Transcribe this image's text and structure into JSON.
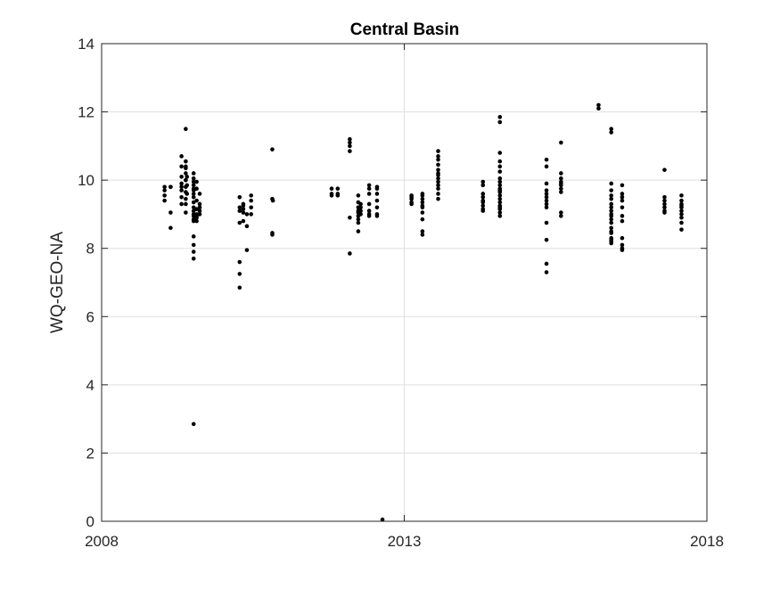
{
  "chart_data": {
    "type": "scatter",
    "title": "Central Basin",
    "xlabel": "",
    "ylabel": "WQ-GEO-NA",
    "xlim": [
      2008,
      2018
    ],
    "ylim": [
      0,
      14
    ],
    "xticks": [
      2008,
      2013,
      2018
    ],
    "xtick_labels": [
      "2008",
      "2013",
      "2018"
    ],
    "yticks": [
      0,
      2,
      4,
      6,
      8,
      10,
      12,
      14
    ],
    "ytick_labels": [
      "0",
      "2",
      "4",
      "6",
      "8",
      "10",
      "12",
      "14"
    ],
    "grid": true,
    "marker_color": "#000000",
    "axis_color": "#262626",
    "grid_color": "#dfdfdf",
    "series": [
      {
        "x": [
          2009.04,
          2009.04,
          2009.04,
          2009.04,
          2009.14,
          2009.14,
          2009.14,
          2009.14,
          2009.32,
          2009.32,
          2009.32,
          2009.32,
          2009.32,
          2009.32,
          2009.32,
          2009.32,
          2009.39,
          2009.39,
          2009.39,
          2009.39,
          2009.39,
          2009.39,
          2009.39,
          2009.39,
          2009.39,
          2009.39,
          2009.39,
          2009.39,
          2009.41,
          2009.41,
          2009.41,
          2009.52,
          2009.52,
          2009.52,
          2009.52,
          2009.52,
          2009.52,
          2009.52,
          2009.52,
          2009.52,
          2009.52,
          2009.52,
          2009.52,
          2009.52,
          2009.52,
          2009.52,
          2009.52,
          2009.52,
          2009.52,
          2009.52,
          2009.52,
          2009.57,
          2009.57,
          2009.57,
          2009.57,
          2009.57,
          2009.57,
          2009.57,
          2009.57,
          2009.62,
          2009.62,
          2009.62,
          2009.62,
          2009.62,
          2010.28,
          2010.28,
          2010.28,
          2010.28,
          2010.28,
          2010.28,
          2010.28,
          2010.34,
          2010.34,
          2010.34,
          2010.34,
          2010.34,
          2010.4,
          2010.4,
          2010.4,
          2010.47,
          2010.47,
          2010.47,
          2010.47,
          2010.82,
          2010.82,
          2010.82,
          2010.82,
          2010.83,
          2011.8,
          2011.8,
          2011.8,
          2011.9,
          2011.9,
          2011.9,
          2012.1,
          2012.1,
          2012.1,
          2012.1,
          2012.1,
          2012.1,
          2012.24,
          2012.24,
          2012.24,
          2012.24,
          2012.24,
          2012.24,
          2012.24,
          2012.24,
          2012.24,
          2012.28,
          2012.28,
          2012.28,
          2012.28,
          2012.42,
          2012.42,
          2012.42,
          2012.42,
          2012.42,
          2012.42,
          2012.42,
          2012.55,
          2012.55,
          2012.55,
          2012.55,
          2012.55,
          2012.55,
          2012.55,
          2012.64,
          2013.12,
          2013.12,
          2013.12,
          2013.12,
          2013.12,
          2013.3,
          2013.3,
          2013.3,
          2013.3,
          2013.3,
          2013.3,
          2013.3,
          2013.3,
          2013.3,
          2013.3,
          2013.56,
          2013.56,
          2013.56,
          2013.56,
          2013.56,
          2013.56,
          2013.56,
          2013.56,
          2013.56,
          2013.56,
          2013.56,
          2013.56,
          2013.56,
          2014.3,
          2014.3,
          2014.3,
          2014.3,
          2014.3,
          2014.3,
          2014.3,
          2014.3,
          2014.3,
          2014.58,
          2014.58,
          2014.58,
          2014.58,
          2014.58,
          2014.58,
          2014.58,
          2014.58,
          2014.58,
          2014.58,
          2014.58,
          2014.58,
          2014.58,
          2014.58,
          2014.58,
          2014.58,
          2014.58,
          2014.58,
          2014.58,
          2014.58,
          2015.35,
          2015.35,
          2015.35,
          2015.35,
          2015.35,
          2015.35,
          2015.35,
          2015.35,
          2015.35,
          2015.35,
          2015.35,
          2015.35,
          2015.35,
          2015.59,
          2015.59,
          2015.59,
          2015.59,
          2015.59,
          2015.59,
          2015.59,
          2015.59,
          2015.59,
          2015.59,
          2016.21,
          2016.21,
          2016.42,
          2016.42,
          2016.42,
          2016.42,
          2016.42,
          2016.42,
          2016.42,
          2016.42,
          2016.42,
          2016.42,
          2016.42,
          2016.42,
          2016.42,
          2016.42,
          2016.42,
          2016.42,
          2016.42,
          2016.42,
          2016.42,
          2016.42,
          2016.6,
          2016.6,
          2016.6,
          2016.6,
          2016.6,
          2016.6,
          2016.6,
          2016.6,
          2016.6,
          2016.6,
          2016.6,
          2017.3,
          2017.3,
          2017.3,
          2017.3,
          2017.3,
          2017.3,
          2017.3,
          2017.58,
          2017.58,
          2017.58,
          2017.58,
          2017.58,
          2017.58,
          2017.58,
          2017.58,
          2017.58,
          2017.58
        ],
        "y": [
          9.4,
          9.55,
          9.7,
          9.8,
          9.8,
          9.05,
          8.6,
          9.8,
          10.7,
          10.4,
          10.1,
          9.9,
          9.7,
          9.5,
          9.3,
          9.8,
          11.5,
          10.55,
          10.4,
          10.2,
          10.0,
          9.8,
          9.65,
          9.45,
          9.3,
          9.05,
          10.35,
          10.0,
          9.6,
          9.85,
          10.1,
          10.2,
          10.05,
          9.95,
          9.85,
          9.75,
          9.7,
          9.6,
          9.5,
          9.35,
          9.2,
          9.1,
          9.0,
          8.95,
          8.85,
          8.35,
          8.1,
          7.9,
          7.7,
          8.8,
          2.85,
          9.95,
          9.75,
          9.4,
          9.15,
          9.0,
          8.95,
          8.9,
          8.8,
          9.6,
          9.3,
          9.2,
          9.1,
          9.0,
          9.5,
          9.2,
          9.1,
          8.75,
          7.6,
          7.25,
          6.85,
          9.3,
          9.15,
          9.05,
          8.8,
          9.25,
          9.0,
          8.65,
          7.95,
          9.55,
          9.4,
          9.2,
          9.0,
          10.9,
          9.45,
          8.45,
          8.4,
          9.4,
          9.75,
          9.6,
          9.55,
          9.75,
          9.6,
          9.55,
          11.2,
          11.1,
          11.0,
          10.85,
          8.9,
          7.85,
          9.55,
          9.35,
          9.2,
          9.05,
          8.95,
          8.85,
          8.75,
          8.5,
          9.1,
          9.0,
          9.1,
          9.2,
          9.3,
          9.85,
          9.75,
          9.6,
          9.3,
          9.1,
          9.0,
          8.95,
          9.8,
          9.6,
          9.4,
          9.2,
          9.0,
          8.95,
          9.75,
          0.05,
          9.55,
          9.45,
          9.35,
          9.3,
          9.5,
          9.55,
          9.45,
          9.35,
          9.2,
          9.05,
          8.85,
          8.5,
          8.4,
          9.6,
          9.25,
          10.85,
          10.6,
          10.45,
          10.3,
          10.15,
          10.05,
          9.95,
          9.85,
          9.75,
          9.6,
          9.45,
          10.7,
          10.2,
          9.95,
          9.85,
          9.6,
          9.5,
          9.4,
          9.35,
          9.25,
          9.15,
          9.1,
          11.85,
          11.7,
          10.8,
          10.55,
          10.25,
          10.05,
          9.95,
          9.85,
          9.75,
          9.65,
          9.55,
          9.45,
          9.35,
          9.25,
          9.15,
          9.05,
          8.95,
          10.4,
          9.7,
          9.2,
          10.6,
          10.4,
          9.9,
          9.7,
          9.6,
          9.5,
          9.4,
          9.3,
          9.2,
          8.75,
          8.25,
          7.55,
          7.3,
          11.1,
          10.2,
          10.05,
          9.95,
          9.85,
          9.75,
          9.65,
          9.05,
          8.95,
          9.9,
          12.2,
          12.1,
          11.5,
          11.4,
          9.9,
          9.7,
          9.55,
          9.45,
          9.3,
          9.2,
          9.1,
          9.0,
          8.95,
          8.85,
          8.75,
          8.6,
          8.5,
          8.45,
          8.3,
          8.25,
          8.2,
          8.15,
          9.85,
          9.6,
          9.5,
          9.4,
          9.2,
          8.95,
          8.8,
          8.3,
          8.1,
          8.0,
          7.95,
          10.3,
          9.5,
          9.4,
          9.3,
          9.2,
          9.1,
          9.05,
          9.55,
          9.4,
          9.3,
          9.2,
          9.1,
          9.0,
          8.9,
          8.75,
          8.55,
          9.25
        ]
      }
    ]
  }
}
